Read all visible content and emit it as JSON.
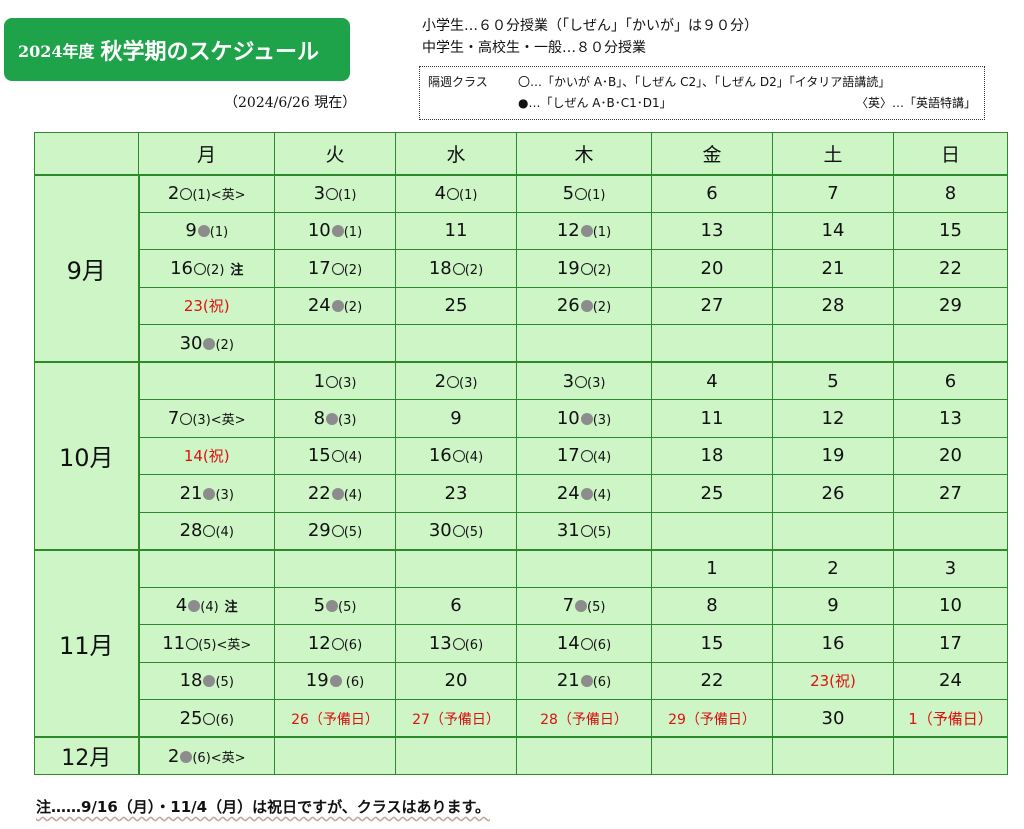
{
  "title": {
    "year": "2024年度",
    "main": "秋学期のスケジュール"
  },
  "as_of": "（2024/6/26 現在）",
  "lesson_notes": [
    "小学生…６０分授業（「しぜん」「かいが」は９０分）",
    "中学生・高校生・一般…８０分授業"
  ],
  "legend": {
    "label": "隔週クラス",
    "open_circle": "〇…「かいが A･B」、「しぜん C2」、「しぜん D2」「イタリア語講読」",
    "filled_circle": "●…「しぜん A･B･C1･D1」",
    "english": "〈英〉…「英語特講」"
  },
  "weekdays": [
    "月",
    "火",
    "水",
    "木",
    "金",
    "土",
    "日"
  ],
  "months": [
    {
      "label": "9月",
      "weeks": [
        [
          {
            "t": "2",
            "m": "o",
            "s": "(1)",
            "x": "<英>"
          },
          {
            "t": "3",
            "m": "o",
            "s": "(1)"
          },
          {
            "t": "4",
            "m": "o",
            "s": "(1)"
          },
          {
            "t": "5",
            "m": "o",
            "s": "(1)"
          },
          {
            "t": "6"
          },
          {
            "t": "7"
          },
          {
            "t": "8"
          }
        ],
        [
          {
            "t": "9",
            "m": "f",
            "s": "(1)"
          },
          {
            "t": "10",
            "m": "f",
            "s": "(1)"
          },
          {
            "t": "11"
          },
          {
            "t": "12",
            "m": "f",
            "s": "(1)"
          },
          {
            "t": "13"
          },
          {
            "t": "14"
          },
          {
            "t": "15"
          }
        ],
        [
          {
            "t": "16",
            "m": "o",
            "s": "(2)",
            "note": "注"
          },
          {
            "t": "17",
            "m": "o",
            "s": "(2)"
          },
          {
            "t": "18",
            "m": "o",
            "s": "(2)"
          },
          {
            "t": "19",
            "m": "o",
            "s": "(2)"
          },
          {
            "t": "20"
          },
          {
            "t": "21"
          },
          {
            "t": "22"
          }
        ],
        [
          {
            "t": "23(祝)",
            "red": true
          },
          {
            "t": "24",
            "m": "f",
            "s": "(2)"
          },
          {
            "t": "25"
          },
          {
            "t": "26",
            "m": "f",
            "s": "(2)"
          },
          {
            "t": "27"
          },
          {
            "t": "28"
          },
          {
            "t": "29"
          }
        ],
        [
          {
            "t": "30",
            "m": "f",
            "s": "(2)"
          },
          {},
          {},
          {},
          {},
          {},
          {}
        ]
      ]
    },
    {
      "label": "10月",
      "weeks": [
        [
          {},
          {
            "t": "1",
            "m": "o",
            "s": "(3)"
          },
          {
            "t": "2",
            "m": "o",
            "s": "(3)"
          },
          {
            "t": "3",
            "m": "o",
            "s": "(3)"
          },
          {
            "t": "4"
          },
          {
            "t": "5"
          },
          {
            "t": "6"
          }
        ],
        [
          {
            "t": "7",
            "m": "o",
            "s": "(3)",
            "x": "<英>"
          },
          {
            "t": "8",
            "m": "f",
            "s": "(3)"
          },
          {
            "t": "9"
          },
          {
            "t": "10",
            "m": "f",
            "s": "(3)"
          },
          {
            "t": "11"
          },
          {
            "t": "12"
          },
          {
            "t": "13"
          }
        ],
        [
          {
            "t": "14(祝)",
            "red": true
          },
          {
            "t": "15",
            "m": "o",
            "s": "(4)"
          },
          {
            "t": "16",
            "m": "o",
            "s": "(4)"
          },
          {
            "t": "17",
            "m": "o",
            "s": "(4)"
          },
          {
            "t": "18"
          },
          {
            "t": "19"
          },
          {
            "t": "20"
          }
        ],
        [
          {
            "t": "21",
            "m": "f",
            "s": "(3)"
          },
          {
            "t": "22",
            "m": "f",
            "s": "(4)"
          },
          {
            "t": "23"
          },
          {
            "t": "24",
            "m": "f",
            "s": "(4)"
          },
          {
            "t": "25"
          },
          {
            "t": "26"
          },
          {
            "t": "27"
          }
        ],
        [
          {
            "t": "28",
            "m": "o",
            "s": "(4)"
          },
          {
            "t": "29",
            "m": "o",
            "s": "(5)"
          },
          {
            "t": "30",
            "m": "o",
            "s": "(5)"
          },
          {
            "t": "31",
            "m": "o",
            "s": "(5)"
          },
          {},
          {},
          {}
        ]
      ]
    },
    {
      "label": "11月",
      "weeks": [
        [
          {},
          {},
          {},
          {},
          {
            "t": "1"
          },
          {
            "t": "2"
          },
          {
            "t": "3"
          }
        ],
        [
          {
            "t": "4",
            "m": "f",
            "s": "(4)",
            "note": "注"
          },
          {
            "t": "5",
            "m": "f",
            "s": "(5)"
          },
          {
            "t": "6"
          },
          {
            "t": "7",
            "m": "f",
            "s": "(5)"
          },
          {
            "t": "8"
          },
          {
            "t": "9"
          },
          {
            "t": "10"
          }
        ],
        [
          {
            "t": "11",
            "m": "o",
            "s": "(5)",
            "x": "<英>"
          },
          {
            "t": "12",
            "m": "o",
            "s": "(6)"
          },
          {
            "t": "13",
            "m": "o",
            "s": "(6)"
          },
          {
            "t": "14",
            "m": "o",
            "s": "(6)"
          },
          {
            "t": "15"
          },
          {
            "t": "16"
          },
          {
            "t": "17"
          }
        ],
        [
          {
            "t": "18",
            "m": "f",
            "s": "(5)"
          },
          {
            "t": "19",
            "m": "f",
            "s": " (6)"
          },
          {
            "t": "20"
          },
          {
            "t": "21",
            "m": "f",
            "s": "(6)"
          },
          {
            "t": "22"
          },
          {
            "t": "23(祝)",
            "red": true
          },
          {
            "t": "24"
          }
        ],
        [
          {
            "t": "25",
            "m": "o",
            "s": "(6)"
          },
          {
            "t": "26（予備日）",
            "red": true
          },
          {
            "t": "27（予備日）",
            "red": true
          },
          {
            "t": "28（予備日）",
            "red": true
          },
          {
            "t": "29（予備日）",
            "red": true
          },
          {
            "t": "30"
          },
          {
            "t": "1（予備日）",
            "red": true
          }
        ]
      ]
    },
    {
      "label": "12月",
      "weeks": [
        [
          {
            "t": "2",
            "m": "f",
            "s": "(6)",
            "x": "<英>"
          },
          {},
          {},
          {},
          {},
          {},
          {}
        ]
      ]
    }
  ],
  "footnote": "注……9/16（月）・11/4（月）は祝日ですが、クラスはあります。",
  "colors": {
    "badge": "#1fa34a",
    "grid": "#2c8a2c",
    "cell_bg": "#cdf5c6",
    "holiday": "#e01010",
    "filled_mark": "#8c8c8c"
  }
}
